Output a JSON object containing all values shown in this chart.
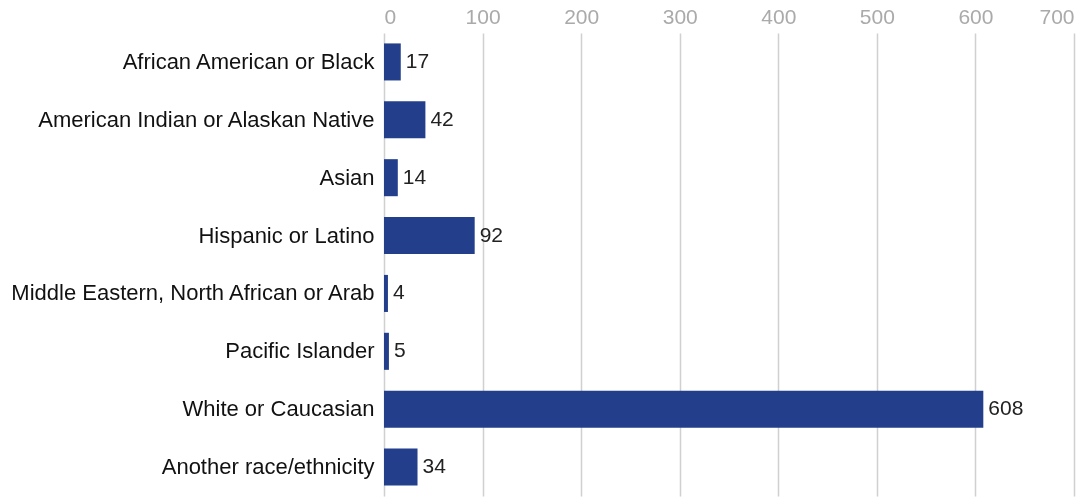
{
  "chart_data": {
    "type": "bar",
    "orientation": "horizontal",
    "categories": [
      "African American or Black",
      "American Indian or Alaskan Native",
      "Asian",
      "Hispanic or Latino",
      "Middle Eastern, North African or Arab",
      "Pacific Islander",
      "White or Caucasian",
      "Another race/ethnicity"
    ],
    "values": [
      17,
      42,
      14,
      92,
      4,
      5,
      608,
      34
    ],
    "color": "#233e8b",
    "xlim": [
      0,
      700
    ],
    "xticks": [
      0,
      100,
      200,
      300,
      400,
      500,
      600,
      700
    ],
    "grid": "x",
    "data_labels": true
  }
}
